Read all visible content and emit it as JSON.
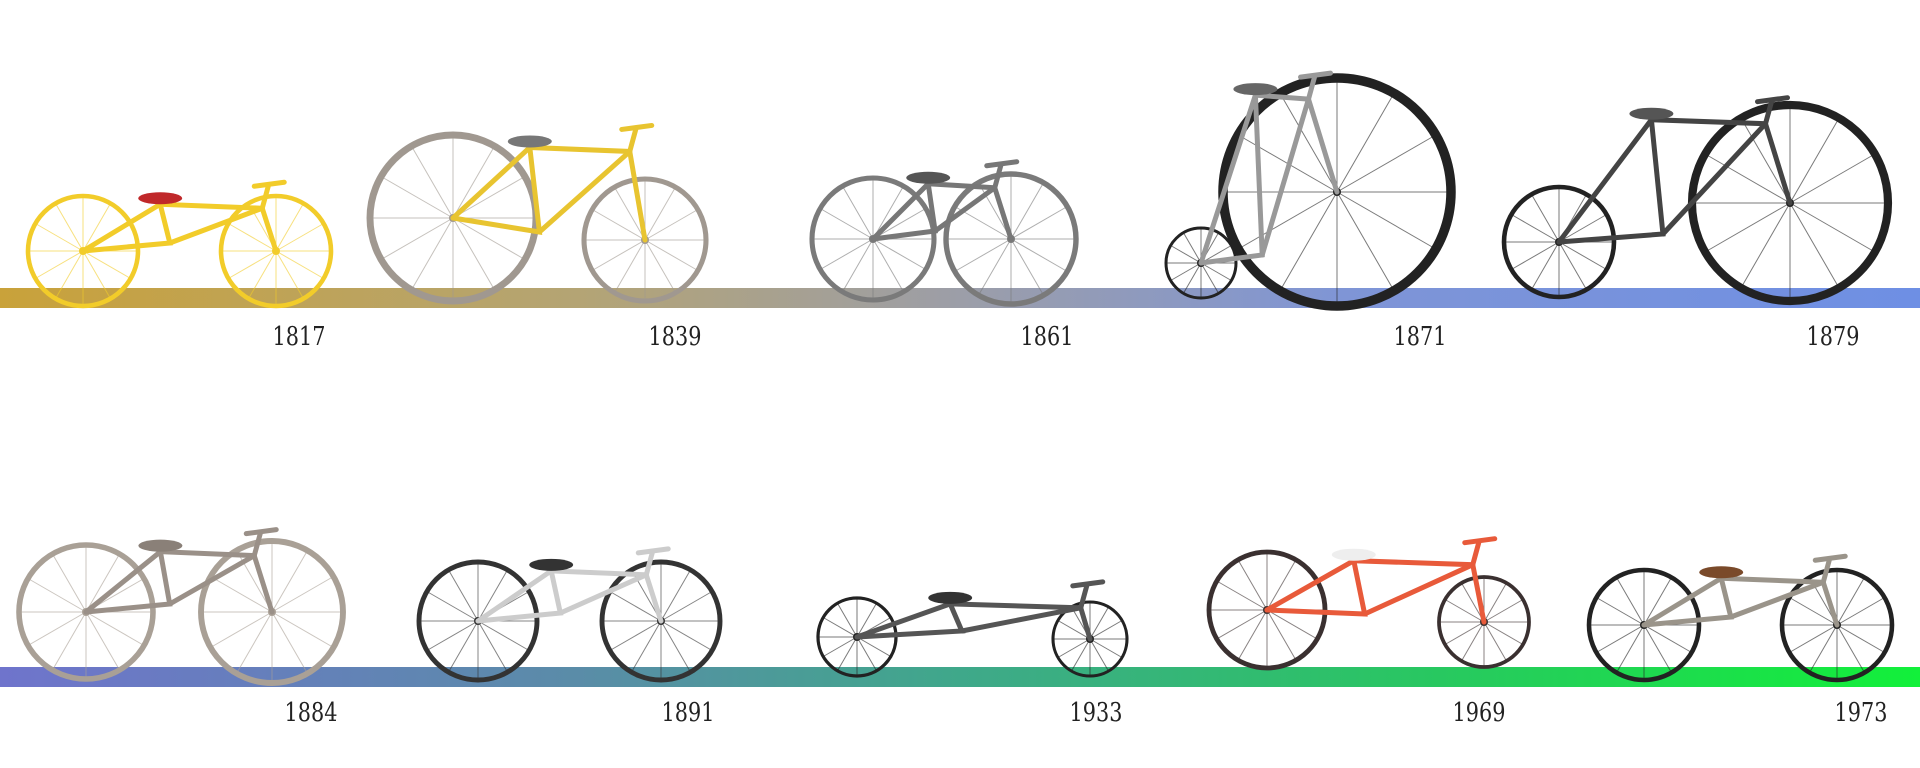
{
  "timeline_rows": [
    {
      "bar_colors": [
        "#c9a23a",
        "#6e8fe4"
      ],
      "bikes": [
        {
          "year": "1817",
          "frame_color": "#f2cc2a",
          "wheel_color": "#f2cc2a",
          "seat_color": "#c0282a"
        },
        {
          "year": "1839",
          "frame_color": "#e8c430",
          "wheel_color": "#a09890",
          "seat_color": "#777777"
        },
        {
          "year": "1861",
          "frame_color": "#777777",
          "wheel_color": "#7a7a7a",
          "seat_color": "#555555"
        },
        {
          "year": "1871",
          "frame_color": "#999999",
          "wheel_color": "#222222",
          "seat_color": "#666666"
        },
        {
          "year": "1879",
          "frame_color": "#444444",
          "wheel_color": "#222222",
          "seat_color": "#555555"
        }
      ]
    },
    {
      "bar_colors": [
        "#6f74cc",
        "#12f03a"
      ],
      "bikes": [
        {
          "year": "1884",
          "frame_color": "#9a9088",
          "wheel_color": "#a9a096",
          "seat_color": "#8a8078"
        },
        {
          "year": "1891",
          "frame_color": "#cccccc",
          "wheel_color": "#333333",
          "seat_color": "#333333"
        },
        {
          "year": "1933",
          "frame_color": "#555555",
          "wheel_color": "#222222",
          "seat_color": "#333333"
        },
        {
          "year": "1969",
          "frame_color": "#e85a3a",
          "wheel_color": "#3a3030",
          "seat_color": "#eeeeee"
        },
        {
          "year": "1973",
          "frame_color": "#9a948a",
          "wheel_color": "#222222",
          "seat_color": "#7a4a2a"
        }
      ]
    }
  ]
}
